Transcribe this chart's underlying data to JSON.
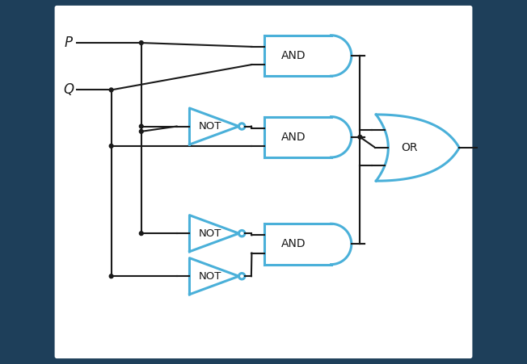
{
  "bg_outer": "#1e3f5a",
  "bg_inner": "#ffffff",
  "gate_edge": "#4ab0d9",
  "gate_lw": 2.2,
  "wire_color": "#1a1a1a",
  "wire_lw": 1.5,
  "dot_color": "#1a1a1a",
  "dot_r": 0.045,
  "text_color": "#1a1a1a",
  "font_size": 10,
  "label_font_size": 12,
  "P_label": "P",
  "Q_label": "Q",
  "AND_label": "AND",
  "NOT_label": "NOT",
  "OR_label": "OR",
  "xlim": [
    0,
    10
  ],
  "ylim": [
    0,
    8.5
  ],
  "figw": 6.52,
  "figh": 4.51,
  "dpi": 100
}
